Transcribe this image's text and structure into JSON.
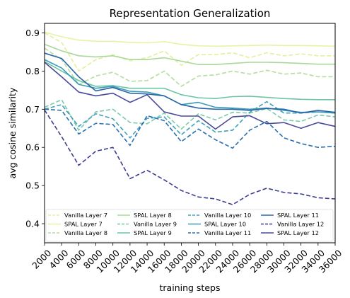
{
  "chart_data": {
    "type": "line",
    "title": "Representation Generalization",
    "xlabel": "training steps",
    "ylabel": "avg cosine similarity",
    "xlim": [
      2000,
      36000
    ],
    "ylim": [
      0.35,
      0.925
    ],
    "xticks": [
      2000,
      4000,
      6000,
      8000,
      10000,
      12000,
      14000,
      16000,
      18000,
      20000,
      22000,
      24000,
      26000,
      28000,
      30000,
      32000,
      34000,
      36000
    ],
    "yticks": [
      0.4,
      0.5,
      0.6,
      0.7,
      0.8,
      0.9
    ],
    "grid": false,
    "legend_position": "lower-center inside axes, 4 columns",
    "x": [
      2000,
      4000,
      6000,
      8000,
      10000,
      12000,
      14000,
      16000,
      18000,
      20000,
      22000,
      24000,
      26000,
      28000,
      30000,
      32000,
      34000,
      36000
    ],
    "series": [
      {
        "name": "Vanilla Layer 7",
        "color": "#e3ef9c",
        "dash": true,
        "values": [
          0.9,
          0.875,
          0.8,
          0.83,
          0.843,
          0.827,
          0.835,
          0.853,
          0.815,
          0.843,
          0.843,
          0.848,
          0.835,
          0.848,
          0.84,
          0.845,
          0.84,
          0.84
        ]
      },
      {
        "name": "SPAL Layer 7",
        "color": "#e7f3a4",
        "dash": false,
        "values": [
          0.902,
          0.89,
          0.881,
          0.878,
          0.878,
          0.875,
          0.874,
          0.877,
          0.87,
          0.866,
          0.865,
          0.866,
          0.867,
          0.868,
          0.867,
          0.867,
          0.866,
          0.865
        ]
      },
      {
        "name": "Vanilla Layer 8",
        "color": "#b4dea0",
        "dash": true,
        "values": [
          0.86,
          0.83,
          0.765,
          0.787,
          0.797,
          0.773,
          0.775,
          0.8,
          0.76,
          0.787,
          0.79,
          0.8,
          0.792,
          0.802,
          0.792,
          0.795,
          0.785,
          0.785
        ]
      },
      {
        "name": "SPAL Layer 8",
        "color": "#aad89a",
        "dash": false,
        "values": [
          0.87,
          0.853,
          0.84,
          0.837,
          0.84,
          0.83,
          0.83,
          0.835,
          0.826,
          0.817,
          0.817,
          0.82,
          0.823,
          0.823,
          0.822,
          0.82,
          0.818,
          0.818
        ]
      },
      {
        "name": "Vanilla Layer 9",
        "color": "#7acba9",
        "dash": true,
        "values": [
          0.705,
          0.725,
          0.645,
          0.693,
          0.7,
          0.665,
          0.662,
          0.69,
          0.648,
          0.688,
          0.672,
          0.692,
          0.69,
          0.702,
          0.672,
          0.668,
          0.685,
          0.68
        ]
      },
      {
        "name": "SPAL Layer 9",
        "color": "#6ec5a4",
        "dash": false,
        "values": [
          0.825,
          0.8,
          0.775,
          0.76,
          0.762,
          0.755,
          0.755,
          0.755,
          0.738,
          0.73,
          0.728,
          0.733,
          0.734,
          0.731,
          0.728,
          0.726,
          0.725,
          0.725
        ]
      },
      {
        "name": "Vanilla Layer 10",
        "color": "#41a2b8",
        "dash": true,
        "values": [
          0.7,
          0.712,
          0.655,
          0.688,
          0.675,
          0.625,
          0.676,
          0.68,
          0.633,
          0.67,
          0.64,
          0.645,
          0.692,
          0.72,
          0.69,
          0.69,
          0.693,
          0.69
        ]
      },
      {
        "name": "SPAL Layer 10",
        "color": "#3a9cb6",
        "dash": false,
        "values": [
          0.83,
          0.808,
          0.765,
          0.755,
          0.76,
          0.747,
          0.745,
          0.735,
          0.712,
          0.718,
          0.705,
          0.703,
          0.7,
          0.703,
          0.697,
          0.692,
          0.693,
          0.69
        ]
      },
      {
        "name": "Vanilla Layer 11",
        "color": "#2a6fb0",
        "dash": true,
        "values": [
          0.7,
          0.697,
          0.635,
          0.663,
          0.66,
          0.605,
          0.683,
          0.67,
          0.615,
          0.648,
          0.62,
          0.598,
          0.645,
          0.668,
          0.625,
          0.61,
          0.6,
          0.603
        ]
      },
      {
        "name": "SPAL Layer 11",
        "color": "#2b65aa",
        "dash": false,
        "values": [
          0.847,
          0.833,
          0.785,
          0.748,
          0.757,
          0.742,
          0.74,
          0.735,
          0.712,
          0.703,
          0.7,
          0.7,
          0.697,
          0.702,
          0.7,
          0.69,
          0.697,
          0.692
        ]
      },
      {
        "name": "Vanilla Layer 12",
        "color": "#3d3d8f",
        "dash": true,
        "values": [
          0.698,
          0.628,
          0.553,
          0.59,
          0.6,
          0.518,
          0.54,
          0.515,
          0.487,
          0.47,
          0.465,
          0.45,
          0.477,
          0.493,
          0.482,
          0.478,
          0.468,
          0.465
        ]
      },
      {
        "name": "SPAL Layer 12",
        "color": "#4a4a9a",
        "dash": false,
        "values": [
          0.823,
          0.785,
          0.745,
          0.735,
          0.742,
          0.718,
          0.738,
          0.693,
          0.682,
          0.682,
          0.648,
          0.68,
          0.683,
          0.662,
          0.665,
          0.65,
          0.665,
          0.655
        ]
      }
    ]
  }
}
